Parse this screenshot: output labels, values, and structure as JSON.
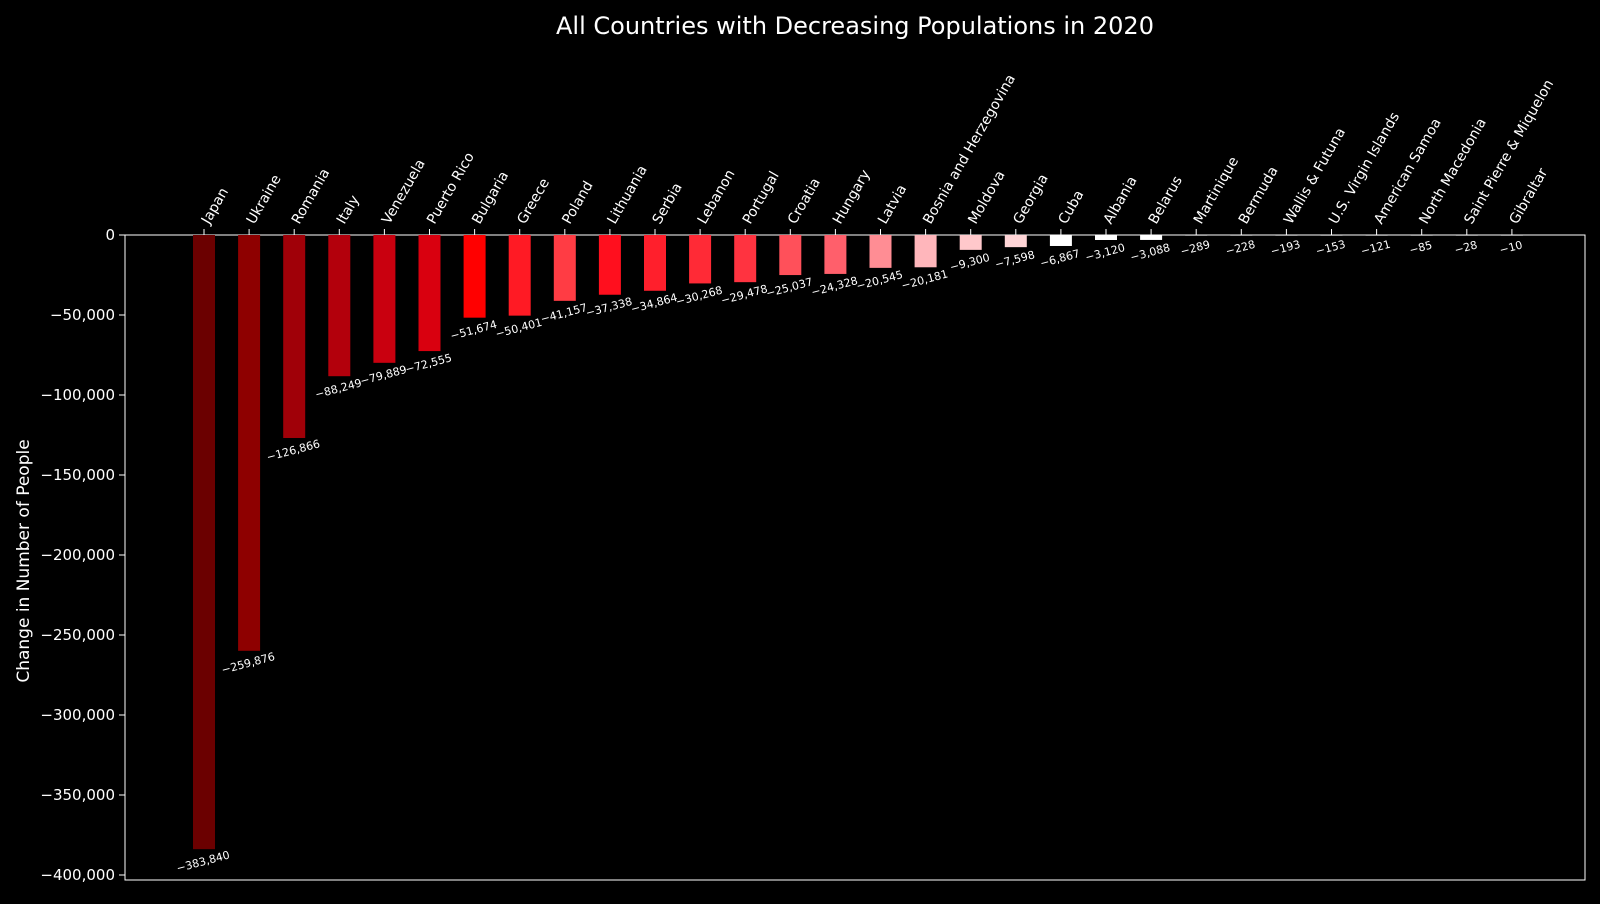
{
  "chart_data": {
    "type": "bar",
    "title": "All Countries with Decreasing Populations in 2020",
    "xlabel": "",
    "ylabel": "Change in Number of People",
    "ylim": [
      -405000,
      0
    ],
    "yticks": [
      0,
      -50000,
      -100000,
      -150000,
      -200000,
      -250000,
      -300000,
      -350000,
      -400000
    ],
    "ytick_labels": [
      "0",
      "−50,000",
      "−100,000",
      "−150,000",
      "−200,000",
      "−250,000",
      "−300,000",
      "−350,000",
      "−400,000"
    ],
    "x_tick_position": "top",
    "grid": false,
    "legend": "none",
    "categories": [
      "Japan",
      "Ukraine",
      "Romania",
      "Italy",
      "Venezuela",
      "Puerto Rico",
      "Bulgaria",
      "Greece",
      "Poland",
      "Lithuania",
      "Serbia",
      "Lebanon",
      "Portugal",
      "Croatia",
      "Hungary",
      "Latvia",
      "Bosnia and Herzegovina",
      "Moldova",
      "Georgia",
      "Cuba",
      "Albania",
      "Belarus",
      "Martinique",
      "Bermuda",
      "Wallis & Futuna",
      "U.S. Virgin Islands",
      "American Samoa",
      "North Macedonia",
      "Saint Pierre & Miquelon",
      "Gibraltar"
    ],
    "values": [
      -383840,
      -259876,
      -126866,
      -88249,
      -79889,
      -72555,
      -51674,
      -50401,
      -41157,
      -37338,
      -34864,
      -30268,
      -29478,
      -25037,
      -24328,
      -20545,
      -20181,
      -9300,
      -7598,
      -6867,
      -3120,
      -3088,
      -289,
      -228,
      -193,
      -153,
      -121,
      -85,
      -28,
      -10
    ],
    "value_labels": [
      "−383,840",
      "−259,876",
      "−126,866",
      "−88,249",
      "−79,889",
      "−72,555",
      "−51,674",
      "−50,401",
      "−41,157",
      "−37,338",
      "−34,864",
      "−30,268",
      "−29,478",
      "−25,037",
      "−24,328",
      "−20,545",
      "−20,181",
      "−9,300",
      "−7,598",
      "−6,867",
      "−3,120",
      "−3,088",
      "−289",
      "−228",
      "−193",
      "−153",
      "−121",
      "−85",
      "−28",
      "−10"
    ],
    "colors": [
      "#6b0000",
      "#8e0000",
      "#a00008",
      "#b3000c",
      "#c9000f",
      "#d9000f",
      "#ff0000",
      "#ff1a24",
      "#ff3c44",
      "#ff0f1e",
      "#ff1f2c",
      "#ff2a36",
      "#ff3340",
      "#ff505a",
      "#ff5f6b",
      "#ff8d94",
      "#ffb6bb",
      "#ffc8cb",
      "#ffd5d7",
      "#ffffff",
      "#ffffff",
      "#ffffff",
      "#ffffff",
      "#ffffff",
      "#ffffff",
      "#ffffff",
      "#ffffff",
      "#ffffff",
      "#ffffff",
      "#ffffff"
    ],
    "background_color": "#000000",
    "axis_color": "#ffffff",
    "text_color": "#ffffff"
  }
}
